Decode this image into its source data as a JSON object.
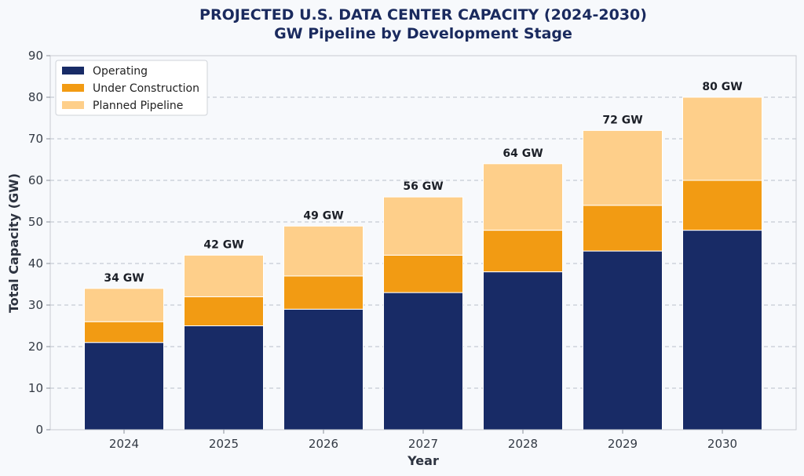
{
  "chart_data": {
    "type": "bar",
    "stacked": true,
    "title": "PROJECTED U.S. DATA CENTER CAPACITY (2024-2030)",
    "subtitle": "GW Pipeline by Development Stage",
    "xlabel": "Year",
    "ylabel": "Total Capacity (GW)",
    "ylim": [
      0,
      90
    ],
    "yticks": [
      0,
      10,
      20,
      30,
      40,
      50,
      60,
      70,
      80,
      90
    ],
    "grid": true,
    "legend_position": "top-left",
    "categories": [
      "2024",
      "2025",
      "2026",
      "2027",
      "2028",
      "2029",
      "2030"
    ],
    "series": [
      {
        "name": "Operating",
        "color": "#182b66",
        "values": [
          21,
          25,
          29,
          33,
          38,
          43,
          48
        ]
      },
      {
        "name": "Under Construction",
        "color": "#f29b13",
        "values": [
          5,
          7,
          8,
          9,
          10,
          11,
          12
        ]
      },
      {
        "name": "Planned Pipeline",
        "color": "#fecf8a",
        "values": [
          8,
          10,
          12,
          14,
          16,
          18,
          20
        ]
      }
    ],
    "total_labels": [
      "34 GW",
      "42 GW",
      "49 GW",
      "56 GW",
      "64 GW",
      "72 GW",
      "80 GW"
    ]
  }
}
